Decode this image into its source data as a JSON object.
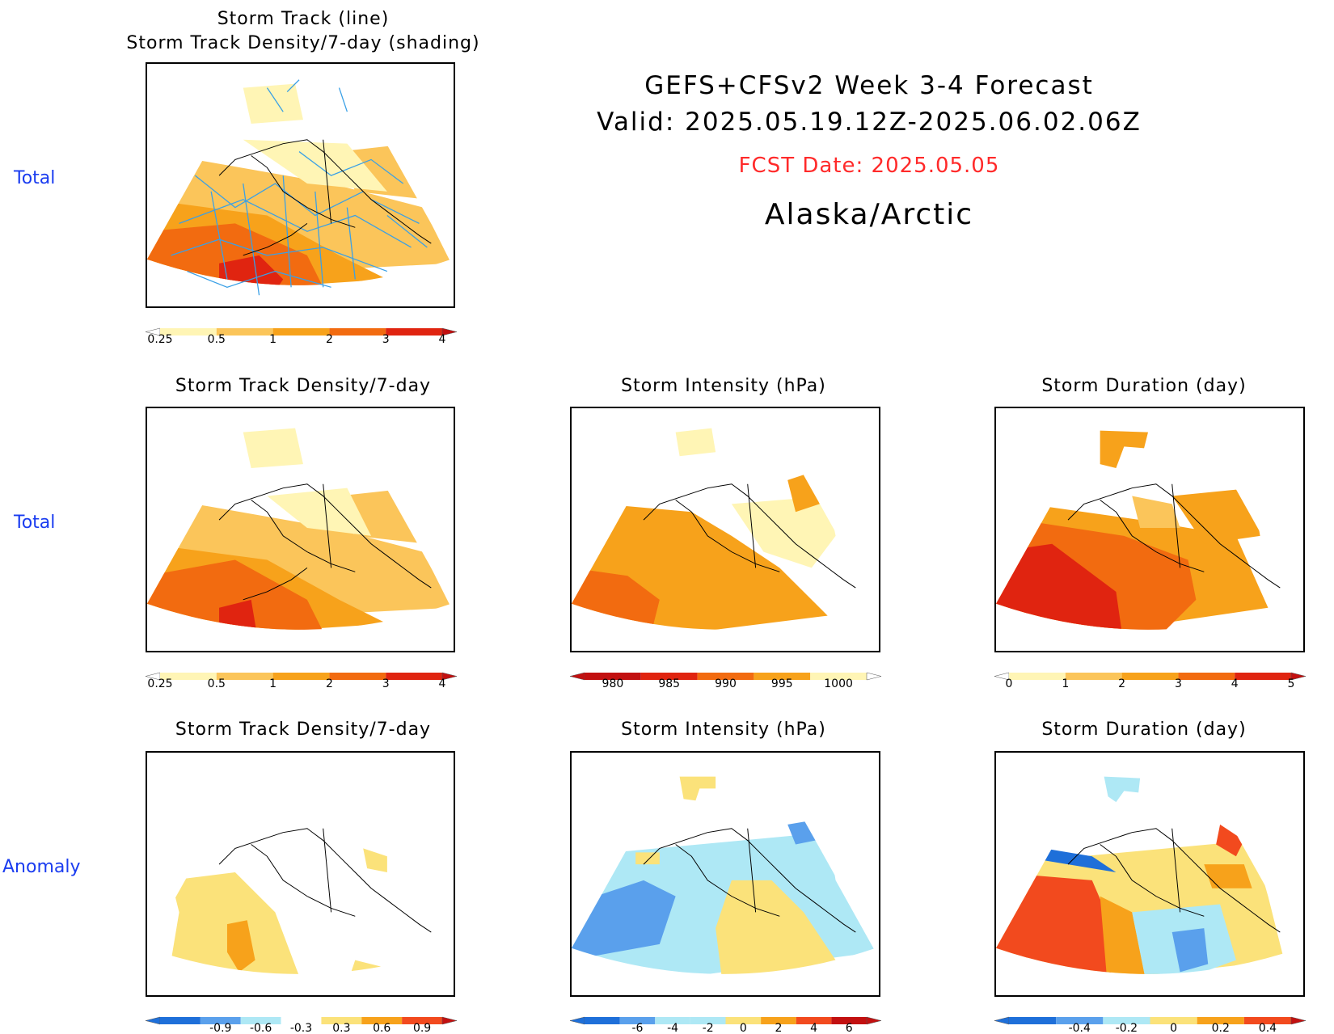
{
  "header": {
    "title": "GEFS+CFSv2 Week 3-4 Forecast",
    "valid": "Valid: 2025.05.19.12Z-2025.06.02.06Z",
    "fcst_date": "FCST Date: 2025.05.05",
    "region": "Alaska/Arctic"
  },
  "rows": {
    "r1": "Total",
    "r2": "Total",
    "r3": "Anomaly"
  },
  "panels": {
    "p1": {
      "title_line1": "Storm Track (line)",
      "title_line2": "Storm Track Density/7-day (shading)"
    },
    "p2": {
      "title": "Storm Track Density/7-day"
    },
    "p3": {
      "title": "Storm Intensity (hPa)"
    },
    "p4": {
      "title": "Storm Duration (day)"
    },
    "p5": {
      "title": "Storm Track Density/7-day"
    },
    "p6": {
      "title": "Storm Intensity (hPa)"
    },
    "p7": {
      "title": "Storm Duration (day)"
    }
  },
  "colorbars": {
    "density_total": {
      "labels": [
        "0.25",
        "0.5",
        "1",
        "2",
        "3",
        "4"
      ],
      "colors": [
        "#fff5b5",
        "#fbc55a",
        "#f7a21b",
        "#f26b10",
        "#e02410"
      ]
    },
    "intensity_total": {
      "labels": [
        "980",
        "985",
        "990",
        "995",
        "1000"
      ],
      "colors": [
        "#c21010",
        "#e02410",
        "#f26b10",
        "#f7a21b",
        "#fff5b5"
      ]
    },
    "duration_total": {
      "labels": [
        "0",
        "1",
        "2",
        "3",
        "4",
        "5"
      ],
      "colors": [
        "#fff5b5",
        "#fbc55a",
        "#f7a21b",
        "#f26b10",
        "#e02410"
      ]
    },
    "density_anom": {
      "labels": [
        "-0.9",
        "-0.6",
        "-0.3",
        "0.3",
        "0.6",
        "0.9"
      ],
      "colors": [
        "#1e6fd9",
        "#5aa0ec",
        "#aee8f5",
        "#ffffff",
        "#fbe27a",
        "#f7a21b",
        "#f24a1e"
      ]
    },
    "intensity_anom": {
      "labels": [
        "-6",
        "-4",
        "-2",
        "0",
        "2",
        "4",
        "6"
      ],
      "colors": [
        "#1e6fd9",
        "#5aa0ec",
        "#aee8f5",
        "#aee8f5",
        "#fbe27a",
        "#f7a21b",
        "#f24a1e",
        "#c21010"
      ]
    },
    "duration_anom": {
      "labels": [
        "-0.4",
        "-0.2",
        "0",
        "0.2",
        "0.4"
      ],
      "colors": [
        "#1e6fd9",
        "#5aa0ec",
        "#aee8f5",
        "#fbe27a",
        "#f7a21b",
        "#f24a1e"
      ]
    }
  },
  "colors": {
    "pale_yellow": "#fff5b5",
    "light_orange": "#fbc55a",
    "orange": "#f7a21b",
    "dark_orange": "#f26b10",
    "red": "#e02410",
    "light_blue": "#aee8f5",
    "blue": "#5aa0ec",
    "dark_blue": "#1e6fd9",
    "anom_yellow": "#fbe27a",
    "track_line": "#3aa0e6",
    "row_label": "#1a3cf0",
    "fcst_text": "#ff2a2a"
  }
}
